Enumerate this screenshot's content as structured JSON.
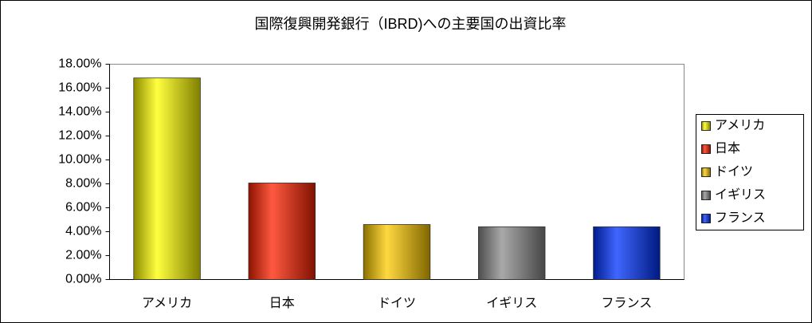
{
  "chart_data": {
    "type": "bar",
    "title": "国際復興開発銀行（IBRD)への主要国の出資比率",
    "categories": [
      "アメリカ",
      "日本",
      "ドイツ",
      "イギリス",
      "フランス"
    ],
    "values": [
      16.85,
      8.07,
      4.6,
      4.41,
      4.41
    ],
    "colors": [
      "#ffff00",
      "#ff2200",
      "#ffcc00",
      "#8c8c8c",
      "#0033ff"
    ],
    "ylim": [
      0,
      18
    ],
    "yticks": [
      {
        "value": 0,
        "label": "0.00%"
      },
      {
        "value": 2,
        "label": "2.00%"
      },
      {
        "value": 4,
        "label": "4.00%"
      },
      {
        "value": 6,
        "label": "6.00%"
      },
      {
        "value": 8,
        "label": "8.00%"
      },
      {
        "value": 10,
        "label": "10.00%"
      },
      {
        "value": 12,
        "label": "12.00%"
      },
      {
        "value": 14,
        "label": "14.00%"
      },
      {
        "value": 16,
        "label": "16.00%"
      },
      {
        "value": 18,
        "label": "18.00%"
      }
    ],
    "legend": "right"
  }
}
